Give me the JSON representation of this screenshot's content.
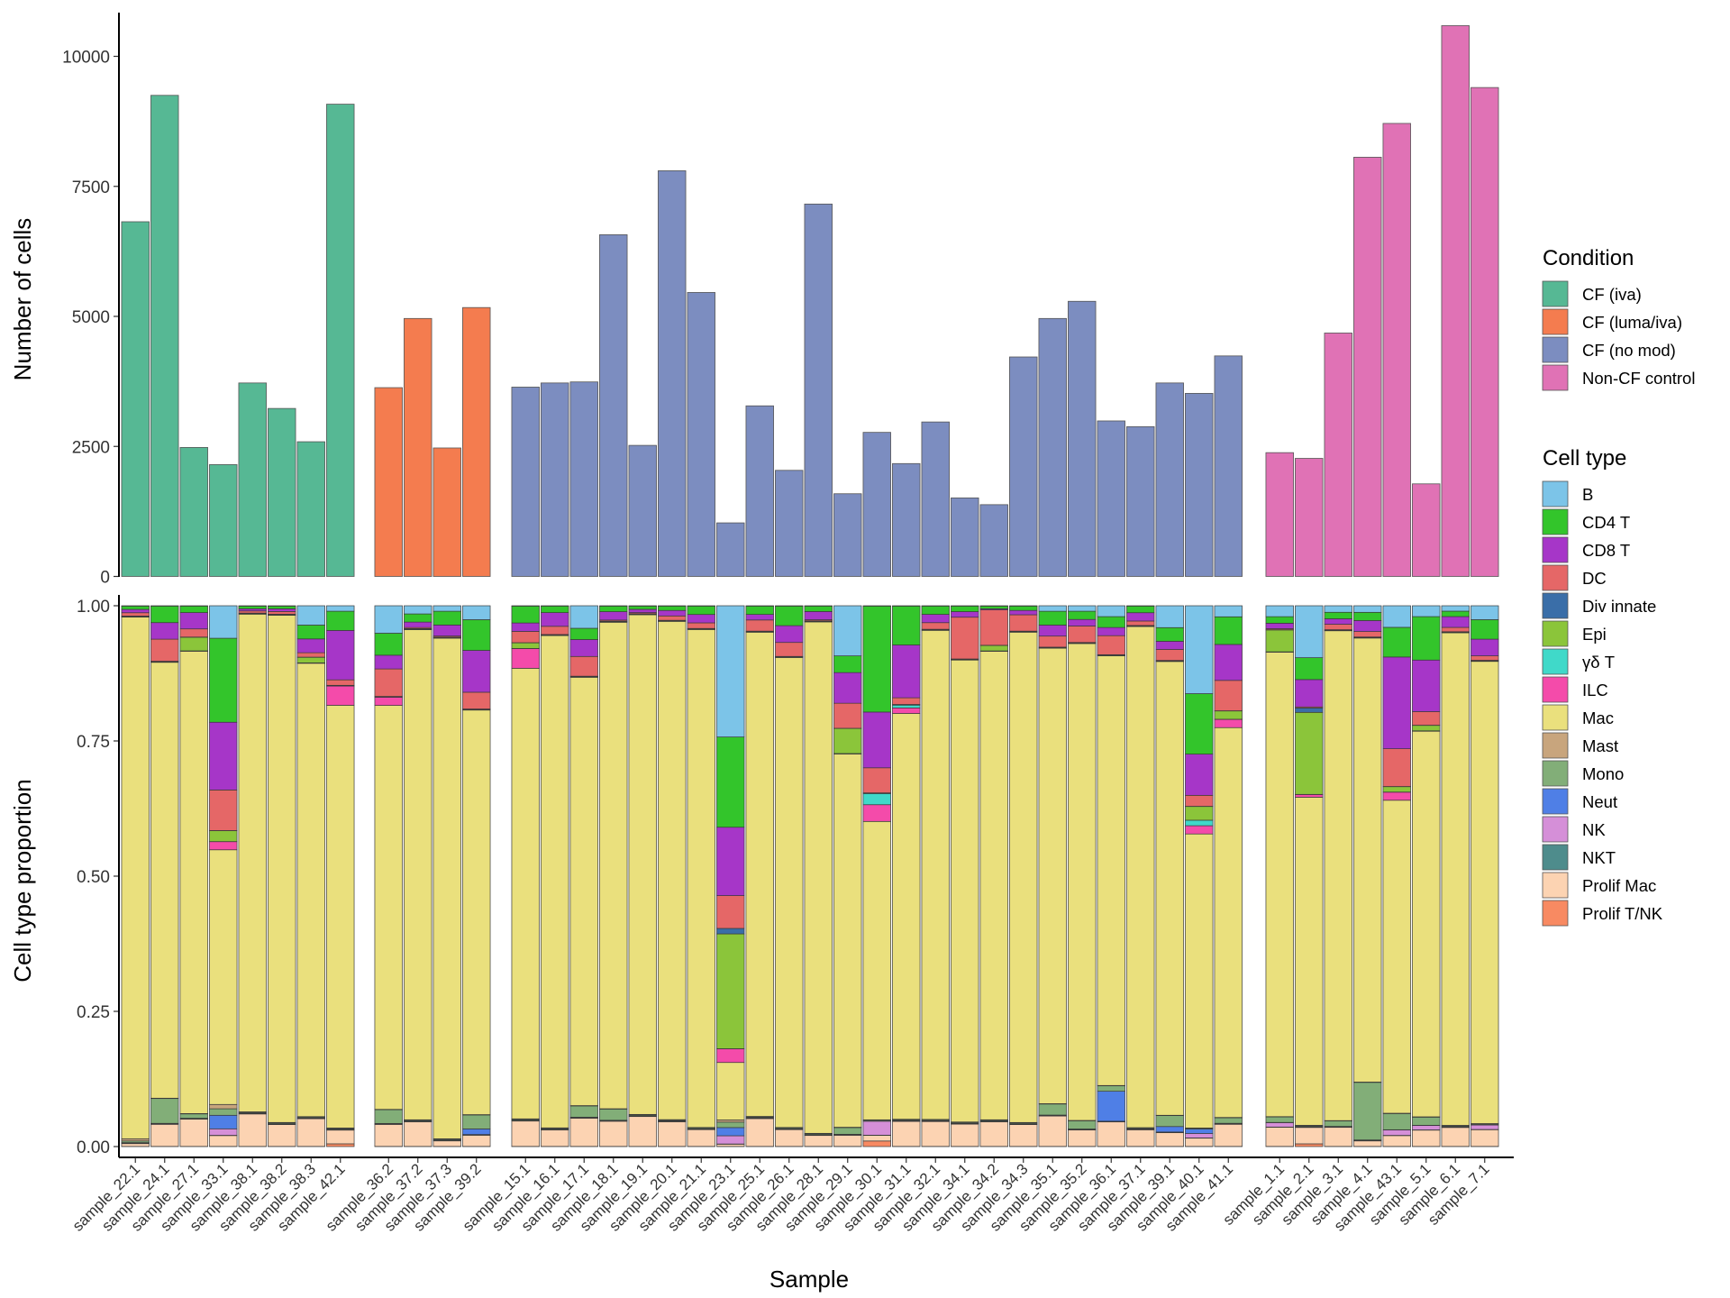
{
  "colors": {
    "conditions": {
      "CF (iva)": "#56B894",
      "CF (luma/iva)": "#F47C4F",
      "CF (no mod)": "#7C8DC0",
      "Non-CF control": "#E072B5"
    },
    "cell_types": {
      "B": "#7CC4E8",
      "CD4 T": "#33C52B",
      "CD8 T": "#A636C8",
      "DC": "#E56767",
      "Div innate": "#3A6EA8",
      "Epi": "#8BC53A",
      "γδ T": "#40D9C9",
      "ILC": "#F44BAA",
      "Mac": "#EAE07D",
      "Mast": "#C8A57D",
      "Mono": "#82AE78",
      "Neut": "#4F7FE6",
      "NK": "#D58FD8",
      "NKT": "#4E8C8C",
      "Prolif Mac": "#FCD3B2",
      "Prolif T/NK": "#F88A62"
    }
  },
  "chart_data": [
    {
      "type": "bar",
      "title": "",
      "xlabel": "",
      "ylabel": "Number of cells",
      "ylim": [
        0,
        10600
      ],
      "yticks": [
        0,
        2500,
        5000,
        7500,
        10000
      ],
      "groups": [
        {
          "condition": "CF (iva)",
          "samples": [
            "sample_22.1",
            "sample_24.1",
            "sample_27.1",
            "sample_33.1",
            "sample_38.1",
            "sample_38.2",
            "sample_38.3",
            "sample_42.1"
          ],
          "values": [
            6820,
            9250,
            2480,
            2150,
            3720,
            3230,
            2590,
            9080
          ]
        },
        {
          "condition": "CF (luma/iva)",
          "samples": [
            "sample_36.2",
            "sample_37.2",
            "sample_37.3",
            "sample_39.2"
          ],
          "values": [
            3630,
            4960,
            2470,
            5170
          ]
        },
        {
          "condition": "CF (no mod)",
          "samples": [
            "sample_15.1",
            "sample_16.1",
            "sample_17.1",
            "sample_18.1",
            "sample_19.1",
            "sample_20.1",
            "sample_21.1",
            "sample_23.1",
            "sample_25.1",
            "sample_26.1",
            "sample_28.1",
            "sample_29.1",
            "sample_30.1",
            "sample_31.1",
            "sample_32.1",
            "sample_34.1",
            "sample_34.2",
            "sample_34.3",
            "sample_35.1",
            "sample_35.2",
            "sample_36.1",
            "sample_37.1",
            "sample_39.1",
            "sample_40.1",
            "sample_41.1"
          ],
          "values": [
            3640,
            3720,
            3740,
            6570,
            2520,
            7800,
            5460,
            1030,
            3280,
            2040,
            7160,
            1590,
            2770,
            2170,
            2970,
            1510,
            1380,
            4220,
            4960,
            5290,
            2990,
            2880,
            3720,
            3520,
            4240
          ]
        },
        {
          "condition": "Non-CF control",
          "samples": [
            "sample_1.1",
            "sample_2.1",
            "sample_3.1",
            "sample_4.1",
            "sample_43.1",
            "sample_5.1",
            "sample_6.1",
            "sample_7.1"
          ],
          "values": [
            2380,
            2270,
            4680,
            8060,
            8710,
            1780,
            10590,
            9400
          ]
        }
      ]
    },
    {
      "type": "bar",
      "stacked": true,
      "title": "",
      "xlabel": "Sample",
      "ylabel": "Cell type proportion",
      "ylim": [
        0,
        1
      ],
      "yticks": [
        "0.00",
        "0.25",
        "0.50",
        "0.75",
        "1.00"
      ],
      "stack_order_bottom_to_top": [
        "Prolif T/NK",
        "Prolif Mac",
        "NKT",
        "NK",
        "Neut",
        "Mono",
        "Mast",
        "Mac",
        "ILC",
        "γδ T",
        "Epi",
        "Div innate",
        "DC",
        "CD8 T",
        "CD4 T",
        "B"
      ],
      "default_fractions": {
        "Prolif T/NK": 0.002,
        "Prolif Mac": 0.03,
        "NKT": 0.003,
        "NK": 0.006,
        "Neut": 0.003,
        "Mono": 0.01,
        "Mast": 0.004,
        "Mac": 0.88,
        "ILC": 0.004,
        "γδ T": 0.001,
        "Epi": 0.006,
        "Div innate": 0.002,
        "DC": 0.015,
        "CD8 T": 0.015,
        "CD4 T": 0.015,
        "B": 0.004
      },
      "groups": [
        {
          "condition": "CF (iva)",
          "samples": [
            {
              "name": "sample_22.1",
              "fractions": {
                "Prolif Mac": 0.005,
                "Mono": 0.003,
                "Mac": 0.94,
                "Mast": 0.004,
                "CD4 T": 0.006,
                "CD8 T": 0.006,
                "DC": 0.006
              }
            },
            {
              "name": "sample_24.1",
              "fractions": {
                "Prolif Mac": 0.04,
                "Mono": 0.045,
                "Mac": 0.79,
                "DC": 0.04,
                "CD8 T": 0.03,
                "CD4 T": 0.03
              }
            },
            {
              "name": "sample_27.1",
              "fractions": {
                "Prolif Mac": 0.05,
                "Mono": 0.008,
                "Mac": 0.85,
                "Epi": 0.025,
                "DC": 0.015,
                "CD8 T": 0.03,
                "CD4 T": 0.012
              }
            },
            {
              "name": "sample_33.1",
              "fractions": {
                "Prolif Mac": 0.02,
                "NK": 0.012,
                "Neut": 0.025,
                "Mono": 0.012,
                "Mast": 0.008,
                "Mac": 0.47,
                "ILC": 0.015,
                "Epi": 0.02,
                "DC": 0.075,
                "CD8 T": 0.125,
                "CD4 T": 0.155,
                "B": 0.06
              }
            },
            {
              "name": "sample_38.1",
              "fractions": {
                "Prolif Mac": 0.06,
                "Mac": 0.92,
                "CD4 T": 0.005,
                "CD8 T": 0.004,
                "DC": 0.004
              }
            },
            {
              "name": "sample_38.2",
              "fractions": {
                "Prolif Mac": 0.04,
                "Mac": 0.93,
                "CD4 T": 0.005,
                "CD8 T": 0.005,
                "DC": 0.005
              }
            },
            {
              "name": "sample_38.3",
              "fractions": {
                "Prolif Mac": 0.05,
                "Mac": 0.82,
                "DC": 0.008,
                "Epi": 0.01,
                "CD8 T": 0.025,
                "CD4 T": 0.025,
                "B": 0.035
              }
            },
            {
              "name": "sample_42.1",
              "fractions": {
                "Prolif T/NK": 0.005,
                "Prolif Mac": 0.025,
                "Mac": 0.77,
                "ILC": 0.035,
                "DC": 0.01,
                "CD8 T": 0.09,
                "CD4 T": 0.035,
                "B": 0.01
              }
            }
          ]
        },
        {
          "condition": "CF (luma/iva)",
          "samples": [
            {
              "name": "sample_36.2",
              "fractions": {
                "Prolif Mac": 0.04,
                "Mono": 0.025,
                "Mac": 0.735,
                "ILC": 0.015,
                "DC": 0.05,
                "CD8 T": 0.025,
                "CD4 T": 0.04,
                "B": 0.05
              }
            },
            {
              "name": "sample_37.2",
              "fractions": {
                "Prolif Mac": 0.045,
                "Mac": 0.9,
                "CD8 T": 0.01,
                "CD4 T": 0.015,
                "B": 0.015
              }
            },
            {
              "name": "sample_37.3",
              "fractions": {
                "Prolif Mac": 0.01,
                "Mac": 0.91,
                "CD8 T": 0.02,
                "CD4 T": 0.025,
                "B": 0.01
              }
            },
            {
              "name": "sample_39.2",
              "fractions": {
                "Prolif Mac": 0.02,
                "Neut": 0.01,
                "Mono": 0.025,
                "Mac": 0.725,
                "DC": 0.03,
                "CD8 T": 0.075,
                "CD4 T": 0.055,
                "B": 0.025
              }
            }
          ]
        },
        {
          "condition": "CF (no mod)",
          "samples": [
            {
              "name": "sample_15.1",
              "fractions": {
                "Prolif Mac": 0.045,
                "Mac": 0.8,
                "ILC": 0.035,
                "Epi": 0.01,
                "DC": 0.02,
                "CD8 T": 0.015,
                "CD4 T": 0.03
              }
            },
            {
              "name": "sample_16.1",
              "fractions": {
                "Prolif Mac": 0.03,
                "Mac": 0.9,
                "DC": 0.015,
                "CD8 T": 0.025,
                "CD4 T": 0.012
              }
            },
            {
              "name": "sample_17.1",
              "fractions": {
                "Prolif Mac": 0.05,
                "Mono": 0.02,
                "Mac": 0.76,
                "DC": 0.035,
                "CD8 T": 0.03,
                "CD4 T": 0.02,
                "B": 0.04
              }
            },
            {
              "name": "sample_18.1",
              "fractions": {
                "Prolif Mac": 0.045,
                "Mono": 0.02,
                "Mac": 0.87,
                "CD8 T": 0.015,
                "CD4 T": 0.01
              }
            },
            {
              "name": "sample_19.1",
              "fractions": {
                "Prolif Mac": 0.055,
                "Mac": 0.92,
                "CD4 T": 0.006,
                "CD8 T": 0.006
              }
            },
            {
              "name": "sample_20.1",
              "fractions": {
                "Prolif Mac": 0.045,
                "Mac": 0.91,
                "DC": 0.008,
                "CD8 T": 0.01,
                "CD4 T": 0.008
              }
            },
            {
              "name": "sample_21.1",
              "fractions": {
                "Prolif Mac": 0.03,
                "Mac": 0.89,
                "DC": 0.01,
                "CD8 T": 0.015,
                "CD4 T": 0.015
              }
            },
            {
              "name": "sample_23.1",
              "fractions": {
                "Prolif Mac": 0.004,
                "NK": 0.015,
                "Neut": 0.015,
                "Mono": 0.01,
                "Mast": 0.004,
                "Mac": 0.105,
                "ILC": 0.025,
                "Epi": 0.21,
                "Div innate": 0.01,
                "DC": 0.06,
                "CD8 T": 0.125,
                "CD4 T": 0.165,
                "B": 0.24
              }
            },
            {
              "name": "sample_25.1",
              "fractions": {
                "Prolif Mac": 0.05,
                "Mac": 0.87,
                "DC": 0.02,
                "CD8 T": 0.01,
                "CD4 T": 0.015
              }
            },
            {
              "name": "sample_26.1",
              "fractions": {
                "Prolif Mac": 0.03,
                "Mac": 0.84,
                "DC": 0.025,
                "CD8 T": 0.03,
                "CD4 T": 0.035
              }
            },
            {
              "name": "sample_28.1",
              "fractions": {
                "Prolif Mac": 0.02,
                "Mac": 0.935,
                "CD8 T": 0.015,
                "CD4 T": 0.01
              }
            },
            {
              "name": "sample_29.1",
              "fractions": {
                "Prolif Mac": 0.02,
                "Mono": 0.012,
                "Mac": 0.67,
                "Epi": 0.045,
                "DC": 0.045,
                "CD8 T": 0.055,
                "CD4 T": 0.03,
                "B": 0.09
              }
            },
            {
              "name": "sample_30.1",
              "fractions": {
                "Prolif T/NK": 0.01,
                "Prolif Mac": 0.01,
                "NK": 0.025,
                "Mac": 0.535,
                "ILC": 0.03,
                "γδ T": 0.02,
                "DC": 0.045,
                "CD8 T": 0.1,
                "CD4 T": 0.19
              }
            },
            {
              "name": "sample_31.1",
              "fractions": {
                "Prolif Mac": 0.045,
                "Mac": 0.73,
                "ILC": 0.01,
                "γδ T": 0.005,
                "DC": 0.012,
                "CD8 T": 0.095,
                "CD4 T": 0.07
              }
            },
            {
              "name": "sample_32.1",
              "fractions": {
                "Prolif Mac": 0.045,
                "Mac": 0.885,
                "DC": 0.012,
                "CD8 T": 0.015,
                "CD4 T": 0.015
              }
            },
            {
              "name": "sample_34.1",
              "fractions": {
                "Prolif Mac": 0.04,
                "Mac": 0.83,
                "DC": 0.075,
                "CD8 T": 0.01,
                "CD4 T": 0.01
              }
            },
            {
              "name": "sample_34.2",
              "fractions": {
                "Prolif Mac": 0.045,
                "Mac": 0.86,
                "Epi": 0.01,
                "DC": 0.065,
                "CD4 T": 0.005
              }
            },
            {
              "name": "sample_34.3",
              "fractions": {
                "Prolif Mac": 0.04,
                "Mac": 0.9,
                "DC": 0.03,
                "CD8 T": 0.008,
                "CD4 T": 0.008
              }
            },
            {
              "name": "sample_35.1",
              "fractions": {
                "Prolif Mac": 0.055,
                "Mono": 0.02,
                "Mac": 0.825,
                "DC": 0.02,
                "CD8 T": 0.02,
                "CD4 T": 0.025,
                "B": 0.01
              }
            },
            {
              "name": "sample_35.2",
              "fractions": {
                "Prolif Mac": 0.03,
                "Mono": 0.015,
                "Mac": 0.87,
                "DC": 0.03,
                "CD8 T": 0.012,
                "CD4 T": 0.015,
                "B": 0.01
              }
            },
            {
              "name": "sample_36.1",
              "fractions": {
                "Prolif Mac": 0.045,
                "Neut": 0.055,
                "Mono": 0.01,
                "Mac": 0.79,
                "DC": 0.035,
                "CD8 T": 0.015,
                "CD4 T": 0.02,
                "B": 0.02
              }
            },
            {
              "name": "sample_37.1",
              "fractions": {
                "Prolif Mac": 0.03,
                "Mac": 0.905,
                "DC": 0.008,
                "CD8 T": 0.015,
                "CD4 T": 0.012
              }
            },
            {
              "name": "sample_39.1",
              "fractions": {
                "Prolif Mac": 0.025,
                "Neut": 0.01,
                "Mono": 0.02,
                "Mac": 0.83,
                "DC": 0.02,
                "CD8 T": 0.015,
                "CD4 T": 0.025,
                "B": 0.04
              }
            },
            {
              "name": "sample_40.1",
              "fractions": {
                "Prolif Mac": 0.015,
                "NK": 0.008,
                "Neut": 0.008,
                "Mac": 0.535,
                "ILC": 0.015,
                "γδ T": 0.01,
                "Epi": 0.025,
                "DC": 0.02,
                "CD8 T": 0.075,
                "CD4 T": 0.11,
                "B": 0.16
              }
            },
            {
              "name": "sample_41.1",
              "fractions": {
                "Prolif Mac": 0.04,
                "Mono": 0.01,
                "Mac": 0.705,
                "ILC": 0.015,
                "Epi": 0.015,
                "DC": 0.055,
                "CD8 T": 0.065,
                "CD4 T": 0.05,
                "B": 0.02
              }
            }
          ]
        },
        {
          "condition": "Non-CF control",
          "samples": [
            {
              "name": "sample_1.1",
              "fractions": {
                "Prolif Mac": 0.035,
                "NK": 0.008,
                "Mono": 0.01,
                "Mac": 0.85,
                "Epi": 0.04,
                "CD8 T": 0.01,
                "CD4 T": 0.012,
                "B": 0.02
              }
            },
            {
              "name": "sample_2.1",
              "fractions": {
                "Prolif T/NK": 0.005,
                "Prolif Mac": 0.03,
                "Mac": 0.6,
                "ILC": 0.005,
                "Epi": 0.15,
                "Div innate": 0.008,
                "CD8 T": 0.05,
                "CD4 T": 0.04,
                "B": 0.095
              }
            },
            {
              "name": "sample_3.1",
              "fractions": {
                "Prolif Mac": 0.035,
                "Mono": 0.01,
                "Mac": 0.9,
                "DC": 0.01,
                "CD8 T": 0.01,
                "CD4 T": 0.012,
                "B": 0.012
              }
            },
            {
              "name": "sample_4.1",
              "fractions": {
                "Prolif Mac": 0.01,
                "Mono": 0.105,
                "Mac": 0.81,
                "DC": 0.01,
                "CD8 T": 0.02,
                "CD4 T": 0.015,
                "B": 0.012
              }
            },
            {
              "name": "sample_43.1",
              "fractions": {
                "Prolif Mac": 0.02,
                "NK": 0.01,
                "Mono": 0.03,
                "Mac": 0.58,
                "ILC": 0.015,
                "Epi": 0.01,
                "DC": 0.07,
                "CD8 T": 0.17,
                "CD4 T": 0.055,
                "B": 0.04
              }
            },
            {
              "name": "sample_5.1",
              "fractions": {
                "Prolif Mac": 0.03,
                "NK": 0.008,
                "Mono": 0.015,
                "Mac": 0.71,
                "Epi": 0.01,
                "DC": 0.025,
                "CD8 T": 0.095,
                "CD4 T": 0.08,
                "B": 0.02
              }
            },
            {
              "name": "sample_6.1",
              "fractions": {
                "Prolif Mac": 0.035,
                "Mac": 0.91,
                "DC": 0.008,
                "CD8 T": 0.02,
                "CD4 T": 0.01,
                "B": 0.01
              }
            },
            {
              "name": "sample_7.1",
              "fractions": {
                "Prolif Mac": 0.03,
                "NK": 0.008,
                "Mac": 0.83,
                "DC": 0.008,
                "CD8 T": 0.03,
                "CD4 T": 0.035,
                "B": 0.025
              }
            }
          ]
        }
      ]
    }
  ],
  "legend": {
    "condition_title": "Condition",
    "conditions": [
      "CF (iva)",
      "CF (luma/iva)",
      "CF (no mod)",
      "Non-CF control"
    ],
    "cell_type_title": "Cell type",
    "cell_types": [
      "B",
      "CD4 T",
      "CD8 T",
      "DC",
      "Div innate",
      "Epi",
      "γδ T",
      "ILC",
      "Mac",
      "Mast",
      "Mono",
      "Neut",
      "NK",
      "NKT",
      "Prolif Mac",
      "Prolif T/NK"
    ]
  }
}
